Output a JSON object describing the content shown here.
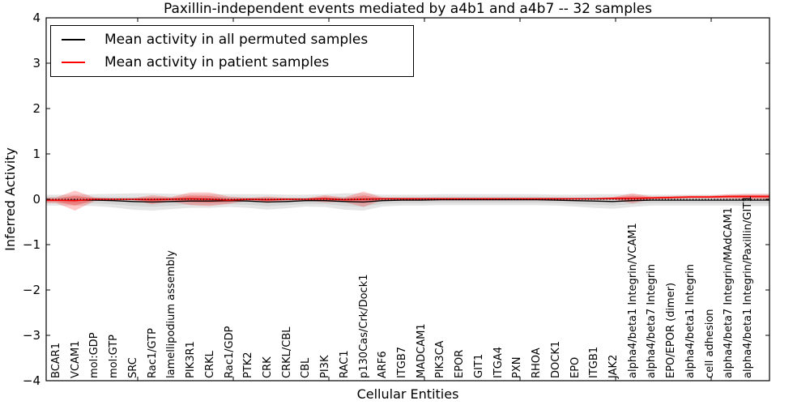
{
  "chart_data": {
    "type": "line",
    "title": "Paxillin-independent events mediated by a4b1 and a4b7 -- 32 samples",
    "xlabel": "Cellular Entities",
    "ylabel": "Inferred Activity",
    "ylim": [
      -4,
      4
    ],
    "ytick_labels": [
      "4",
      "3",
      "2",
      "1",
      "0",
      "−1",
      "−2",
      "−3",
      "−4"
    ],
    "grid": false,
    "zero_reference_line": {
      "y": 0,
      "style": "dotted",
      "color": "#000000"
    },
    "legend": {
      "position": "upper left",
      "entries": [
        {
          "label": "Mean activity in all permuted samples",
          "color": "#000000"
        },
        {
          "label": "Mean activity in patient samples",
          "color": "#ff0000"
        }
      ]
    },
    "categories": [
      "BCAR1",
      "VCAM1",
      "mol:GDP",
      "mol:GTP",
      "SRC",
      "Rac1/GTP",
      "lamellipodium assembly",
      "PIK3R1",
      "CRKL",
      "Rac1/GDP",
      "PTK2",
      "CRK",
      "CRKL/CBL",
      "CBL",
      "PI3K",
      "RAC1",
      "p130Cas/Crk/Dock1",
      "ARF6",
      "ITGB7",
      "MADCAM1",
      "PIK3CA",
      "EPOR",
      "GIT1",
      "ITGA4",
      "PXN",
      "RHOA",
      "DOCK1",
      "EPO",
      "ITGB1",
      "JAK2",
      "alpha4/beta1 Integrin/VCAM1",
      "alpha4/beta7 Integrin",
      "EPO/EPOR (dimer)",
      "alpha4/beta1 Integrin",
      "cell adhesion",
      "alpha4/beta7 Integrin/MAdCAM1",
      "alpha4/beta1 Integrin/Paxillin/GIT1"
    ],
    "series": [
      {
        "name": "Mean activity in all permuted samples",
        "color": "#000000",
        "values": [
          -0.02,
          -0.02,
          -0.02,
          -0.03,
          -0.05,
          -0.06,
          -0.05,
          -0.04,
          -0.04,
          -0.03,
          -0.04,
          -0.06,
          -0.05,
          -0.03,
          -0.03,
          -0.05,
          -0.06,
          -0.03,
          -0.02,
          -0.02,
          -0.01,
          -0.01,
          -0.01,
          -0.01,
          -0.01,
          -0.01,
          -0.02,
          -0.03,
          -0.04,
          -0.05,
          -0.03,
          -0.02,
          -0.02,
          -0.02,
          -0.02,
          -0.02,
          -0.02
        ]
      },
      {
        "name": "Mean activity in patient samples",
        "color": "#ff0000",
        "values": [
          -0.02,
          -0.03,
          0.0,
          0.0,
          0.0,
          -0.01,
          0.0,
          0.01,
          0.0,
          -0.02,
          0.0,
          -0.01,
          0.0,
          0.0,
          0.01,
          -0.01,
          0.0,
          0.01,
          0.01,
          0.01,
          0.01,
          0.01,
          0.01,
          0.01,
          0.01,
          0.01,
          0.01,
          0.01,
          0.01,
          0.02,
          0.02,
          0.03,
          0.04,
          0.05,
          0.05,
          0.06,
          0.06
        ]
      }
    ],
    "bands": [
      {
        "name": "permuted-samples-spread",
        "color": "#000000",
        "center_series": 0,
        "half_widths": [
          0.12,
          0.12,
          0.13,
          0.15,
          0.18,
          0.19,
          0.17,
          0.15,
          0.15,
          0.14,
          0.15,
          0.17,
          0.15,
          0.13,
          0.14,
          0.18,
          0.19,
          0.13,
          0.12,
          0.12,
          0.12,
          0.12,
          0.12,
          0.12,
          0.12,
          0.12,
          0.12,
          0.13,
          0.15,
          0.16,
          0.14,
          0.12,
          0.12,
          0.12,
          0.12,
          0.12,
          0.13
        ]
      },
      {
        "name": "patient-samples-spread",
        "color": "#ff0000",
        "center_series": 1,
        "half_widths": [
          0.06,
          0.22,
          0.04,
          0.02,
          0.02,
          0.1,
          0.05,
          0.14,
          0.15,
          0.08,
          0.03,
          0.07,
          0.03,
          0.02,
          0.08,
          0.05,
          0.17,
          0.03,
          0.02,
          0.02,
          0.02,
          0.02,
          0.02,
          0.02,
          0.02,
          0.02,
          0.02,
          0.02,
          0.02,
          0.03,
          0.11,
          0.03,
          0.03,
          0.03,
          0.03,
          0.05,
          0.06
        ]
      }
    ]
  },
  "colors": {
    "background": "#ffffff",
    "frame": "#000000",
    "permuted_line": "#000000",
    "patient_line": "#ff0000"
  }
}
